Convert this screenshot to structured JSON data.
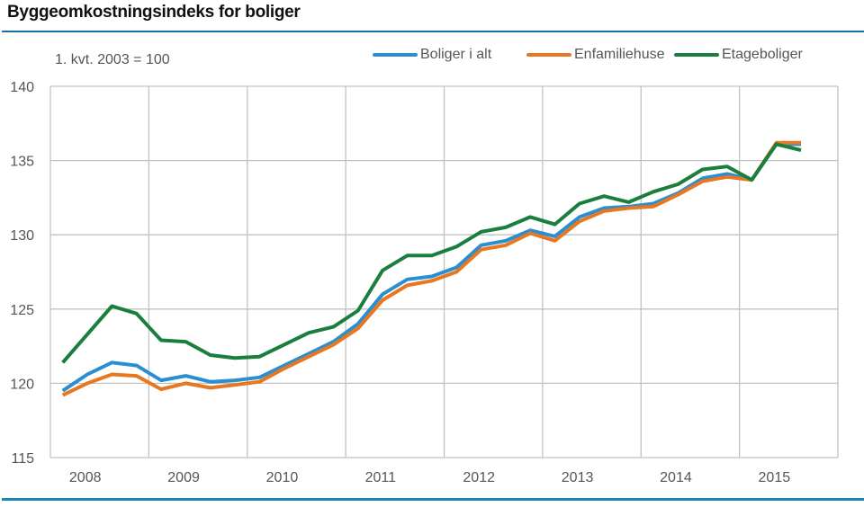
{
  "header": {
    "title": "Byggeomkostningsindeks for boliger",
    "subtitle": "1. kvt. 2003 = 100"
  },
  "chart_data": {
    "type": "line",
    "title": "Byggeomkostningsindeks for boliger",
    "subtitle": "1. kvt. 2003 = 100",
    "xlabel": "",
    "ylabel": "",
    "ylim": [
      115,
      140
    ],
    "yticks": [
      115,
      120,
      125,
      130,
      135,
      140
    ],
    "categories": [
      "2008",
      "2009",
      "2010",
      "2011",
      "2012",
      "2013",
      "2014",
      "2015"
    ],
    "x_unit": "quarter",
    "x": [
      "2008K1",
      "2008K2",
      "2008K3",
      "2008K4",
      "2009K1",
      "2009K2",
      "2009K3",
      "2009K4",
      "2010K1",
      "2010K2",
      "2010K3",
      "2010K4",
      "2011K1",
      "2011K2",
      "2011K3",
      "2011K4",
      "2012K1",
      "2012K2",
      "2012K3",
      "2012K4",
      "2013K1",
      "2013K2",
      "2013K3",
      "2013K4",
      "2014K1",
      "2014K2",
      "2014K3",
      "2014K4",
      "2015K1",
      "2015K2",
      "2015K3"
    ],
    "grid": true,
    "legend_position": "top-right",
    "series": [
      {
        "name": "Boliger i alt",
        "color": "#2a8fd0",
        "values": [
          119.5,
          120.6,
          121.4,
          121.2,
          120.2,
          120.5,
          120.1,
          120.2,
          120.4,
          121.2,
          122.0,
          122.8,
          124.0,
          126.0,
          127.0,
          127.2,
          127.8,
          129.3,
          129.6,
          130.3,
          129.9,
          131.2,
          131.8,
          131.9,
          132.1,
          132.8,
          133.8,
          134.1,
          133.7,
          136.1,
          136.1
        ]
      },
      {
        "name": "Enfamiliehuse",
        "color": "#e87722",
        "values": [
          119.2,
          120.0,
          120.6,
          120.5,
          119.6,
          120.0,
          119.7,
          119.9,
          120.1,
          121.0,
          121.8,
          122.6,
          123.7,
          125.6,
          126.6,
          126.9,
          127.5,
          129.0,
          129.3,
          130.1,
          129.6,
          130.9,
          131.6,
          131.8,
          131.9,
          132.7,
          133.6,
          133.9,
          133.7,
          136.2,
          136.2
        ]
      },
      {
        "name": "Etageboliger",
        "color": "#1a7f3c",
        "values": [
          121.4,
          123.3,
          125.2,
          124.7,
          122.9,
          122.8,
          121.9,
          121.7,
          121.8,
          122.6,
          123.4,
          123.8,
          124.9,
          127.6,
          128.6,
          128.6,
          129.2,
          130.2,
          130.5,
          131.2,
          130.7,
          132.1,
          132.6,
          132.2,
          132.9,
          133.4,
          134.4,
          134.6,
          133.7,
          136.1,
          135.7
        ]
      }
    ]
  }
}
